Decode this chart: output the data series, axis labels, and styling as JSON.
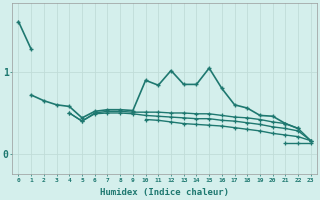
{
  "xlabel": "Humidex (Indice chaleur)",
  "bg_color": "#d4efec",
  "line_color": "#1e7870",
  "grid_color": "#c0dcd8",
  "x_values": [
    0,
    1,
    2,
    3,
    4,
    5,
    6,
    7,
    8,
    9,
    10,
    11,
    12,
    13,
    14,
    15,
    16,
    17,
    18,
    19,
    20,
    21,
    22,
    23
  ],
  "line_steep": [
    1.62,
    1.28,
    null,
    null,
    null,
    null,
    null,
    null,
    null,
    null,
    null,
    null,
    null,
    null,
    null,
    null,
    null,
    null,
    null,
    null,
    null,
    null,
    null,
    null
  ],
  "line_main": [
    null,
    0.72,
    0.65,
    0.6,
    0.58,
    0.44,
    0.52,
    0.54,
    0.54,
    0.53,
    0.9,
    0.84,
    1.02,
    0.85,
    0.85,
    1.05,
    0.8,
    0.6,
    0.56,
    0.47,
    0.46,
    0.37,
    0.31,
    null
  ],
  "line_a": [
    null,
    null,
    null,
    null,
    0.5,
    0.4,
    0.5,
    0.52,
    0.52,
    0.51,
    0.51,
    0.51,
    0.5,
    0.5,
    0.49,
    0.49,
    0.47,
    0.45,
    0.44,
    0.42,
    0.39,
    0.37,
    0.31,
    0.16
  ],
  "line_b": [
    null,
    null,
    null,
    null,
    0.5,
    0.4,
    0.49,
    0.5,
    0.5,
    0.49,
    0.47,
    0.46,
    0.45,
    0.44,
    0.43,
    0.43,
    0.41,
    0.4,
    0.38,
    0.36,
    0.33,
    0.31,
    0.28,
    0.16
  ],
  "line_c": [
    null,
    null,
    null,
    null,
    null,
    null,
    null,
    null,
    null,
    null,
    0.42,
    0.41,
    0.39,
    0.37,
    0.36,
    0.35,
    0.34,
    0.32,
    0.3,
    0.28,
    0.25,
    0.23,
    0.21,
    0.16
  ],
  "line_end": [
    null,
    null,
    null,
    null,
    null,
    null,
    null,
    null,
    null,
    null,
    null,
    null,
    null,
    null,
    null,
    null,
    null,
    null,
    null,
    null,
    null,
    0.13,
    0.13,
    0.13
  ],
  "ytick_positions": [
    0,
    1
  ],
  "ytick_labels": [
    "0",
    "1"
  ],
  "ylim": [
    -0.25,
    1.85
  ],
  "xlim": [
    -0.5,
    23.5
  ]
}
